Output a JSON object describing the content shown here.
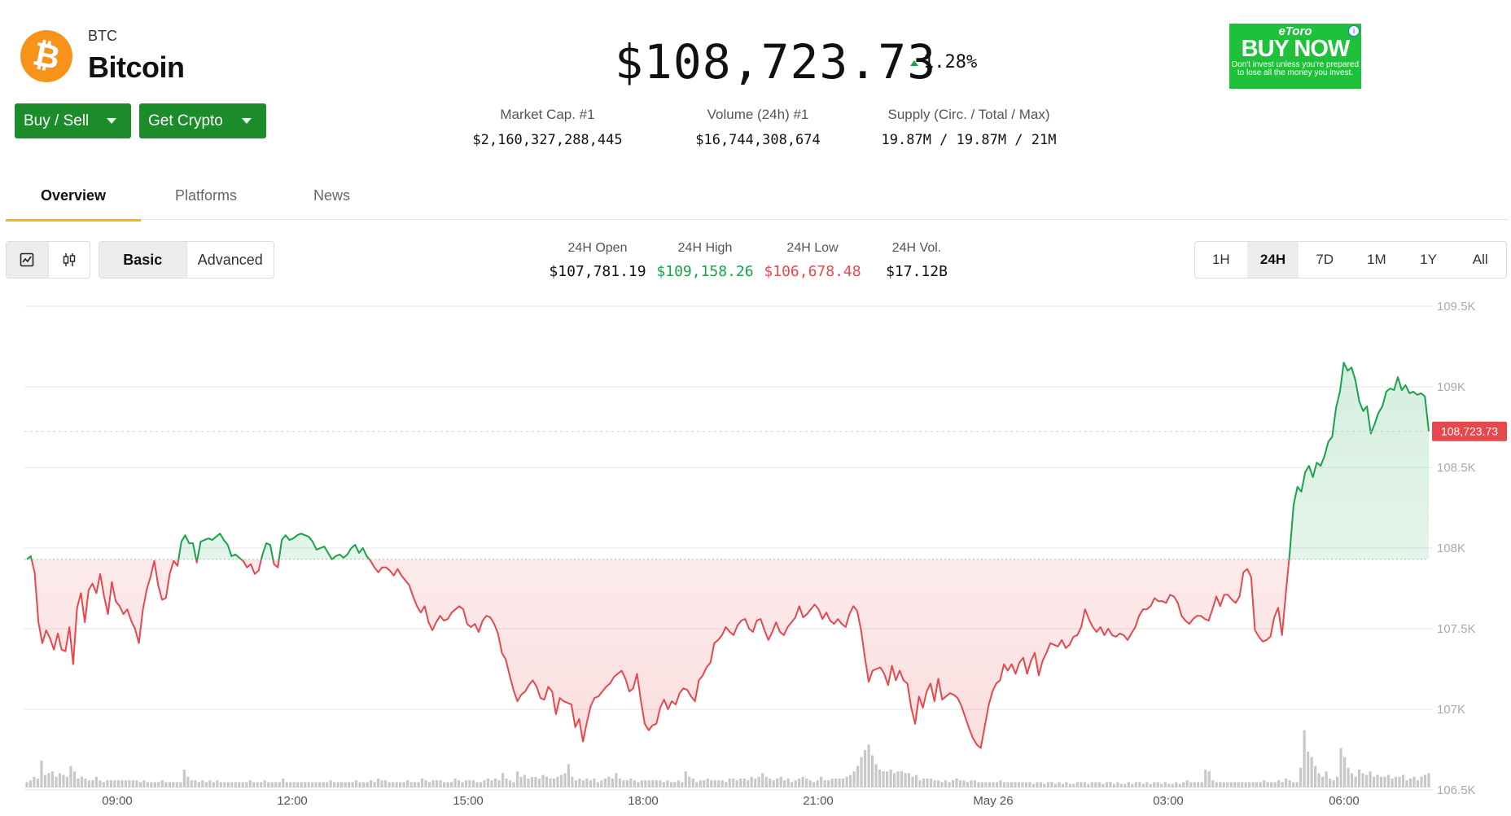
{
  "coin": {
    "symbol": "BTC",
    "name": "Bitcoin",
    "logo_glyph": "₿",
    "brand_color": "#f7931a"
  },
  "actions": {
    "buy_sell_label": "Buy / Sell",
    "get_crypto_label": "Get Crypto",
    "button_color": "#1c8c2a"
  },
  "price": {
    "value": "$108,723.73",
    "change": "1.28%",
    "change_direction": "up"
  },
  "stats": {
    "market_cap_label": "Market Cap. #1",
    "market_cap_value": "$2,160,327,288,445",
    "volume_label": "Volume (24h) #1",
    "volume_value": "$16,744,308,674",
    "supply_label": "Supply (Circ. / Total / Max)",
    "supply_value": "19.87M / 19.87M / 21M"
  },
  "ad": {
    "brand": "eToro",
    "cta": "BUY NOW",
    "disclaimer": "Don't invest unless you're prepared to lose all the money you invest.",
    "info_glyph": "i"
  },
  "tabs": [
    {
      "label": "Overview",
      "active": true
    },
    {
      "label": "Platforms",
      "active": false
    },
    {
      "label": "News",
      "active": false
    }
  ],
  "chart_controls": {
    "chart_type_icons": [
      "line-chart-icon",
      "candlestick-icon"
    ],
    "mode_basic": "Basic",
    "mode_advanced": "Advanced",
    "active_mode": "Basic"
  },
  "ohlc": {
    "open_label": "24H Open",
    "open_value": "$107,781.19",
    "high_label": "24H High",
    "high_value": "$109,158.26",
    "low_label": "24H Low",
    "low_value": "$106,678.48",
    "vol_label": "24H Vol.",
    "vol_value": "$17.12B"
  },
  "timeframes": [
    "1H",
    "24H",
    "7D",
    "1M",
    "1Y",
    "All"
  ],
  "active_timeframe": "24H",
  "colors": {
    "up": "#16a34a",
    "down": "#e5484d",
    "grid": "#e6e6e6",
    "volume": "#c8c8c8",
    "tab_accent": "#f0b90b"
  },
  "chart_data": {
    "type": "area",
    "title": "",
    "x_tick_labels": [
      "09:00",
      "12:00",
      "15:00",
      "18:00",
      "21:00",
      "May 26",
      "03:00",
      "06:00"
    ],
    "y_tick_labels": [
      "109.5K",
      "109K",
      "108.5K",
      "108K",
      "107.5K",
      "107K",
      "106.5K"
    ],
    "ylim": [
      106500,
      109500
    ],
    "baseline": 107930,
    "current_price_label": "108,723.73",
    "current_price": 108723.73,
    "grid": true,
    "series": [
      {
        "values": [
          107930,
          107950,
          107850,
          107540,
          107410,
          107490,
          107440,
          107370,
          107470,
          107370,
          107360,
          107510,
          107280,
          107630,
          107720,
          107540,
          107740,
          107780,
          107720,
          107840,
          107700,
          107590,
          107790,
          107670,
          107640,
          107590,
          107620,
          107550,
          107500,
          107410,
          107610,
          107740,
          107820,
          107920,
          107770,
          107680,
          107690,
          107840,
          107920,
          107890,
          108040,
          108080,
          108030,
          108030,
          107910,
          108040,
          108050,
          108060,
          108050,
          108070,
          108090,
          108050,
          108020,
          107950,
          107960,
          107940,
          107920,
          107880,
          107900,
          107840,
          107860,
          107960,
          108030,
          108020,
          107900,
          107880,
          108050,
          108080,
          108050,
          108060,
          108080,
          108090,
          108080,
          108070,
          108040,
          107990,
          108000,
          108010,
          107970,
          107930,
          107950,
          107960,
          107940,
          107960,
          108000,
          108020,
          107970,
          108000,
          107950,
          107920,
          107880,
          107850,
          107880,
          107880,
          107860,
          107830,
          107870,
          107830,
          107800,
          107770,
          107700,
          107640,
          107600,
          107640,
          107540,
          107490,
          107540,
          107580,
          107550,
          107560,
          107600,
          107620,
          107640,
          107620,
          107530,
          107510,
          107530,
          107480,
          107550,
          107580,
          107570,
          107530,
          107470,
          107350,
          107310,
          107210,
          107120,
          107050,
          107090,
          107110,
          107150,
          107180,
          107140,
          107070,
          107060,
          107140,
          107110,
          106970,
          107070,
          107050,
          107040,
          107030,
          106890,
          106940,
          106800,
          106920,
          107020,
          107070,
          107080,
          107110,
          107140,
          107160,
          107200,
          107220,
          107240,
          107190,
          107110,
          107130,
          107220,
          107050,
          106910,
          106870,
          106900,
          106910,
          107010,
          107060,
          107000,
          107050,
          107030,
          107100,
          107130,
          107120,
          107080,
          107050,
          107180,
          107210,
          107260,
          107290,
          107410,
          107430,
          107460,
          107510,
          107480,
          107460,
          107520,
          107550,
          107560,
          107500,
          107480,
          107550,
          107560,
          107490,
          107430,
          107480,
          107540,
          107480,
          107460,
          107510,
          107540,
          107570,
          107640,
          107570,
          107590,
          107620,
          107650,
          107620,
          107560,
          107600,
          107550,
          107530,
          107560,
          107530,
          107510,
          107590,
          107640,
          107610,
          107490,
          107320,
          107170,
          107240,
          107250,
          107260,
          107220,
          107150,
          107270,
          107180,
          107240,
          107180,
          107160,
          107010,
          106910,
          107080,
          107010,
          107110,
          107160,
          107050,
          107190,
          107060,
          107080,
          107100,
          107090,
          107070,
          107020,
          106950,
          106880,
          106820,
          106780,
          106760,
          106890,
          107020,
          107110,
          107160,
          107180,
          107280,
          107240,
          107280,
          107220,
          107290,
          107320,
          107220,
          107300,
          107350,
          107210,
          107300,
          107350,
          107410,
          107400,
          107390,
          107430,
          107380,
          107400,
          107450,
          107460,
          107510,
          107620,
          107560,
          107510,
          107480,
          107510,
          107460,
          107500,
          107460,
          107450,
          107470,
          107460,
          107430,
          107470,
          107510,
          107580,
          107620,
          107620,
          107640,
          107690,
          107670,
          107670,
          107660,
          107710,
          107700,
          107660,
          107580,
          107550,
          107530,
          107560,
          107580,
          107580,
          107560,
          107550,
          107620,
          107700,
          107640,
          107710,
          107710,
          107680,
          107660,
          107700,
          107850,
          107870,
          107820,
          107490,
          107450,
          107420,
          107430,
          107450,
          107570,
          107630,
          107460,
          107720,
          107970,
          108270,
          108380,
          108350,
          108470,
          108510,
          108440,
          108530,
          108510,
          108570,
          108660,
          108690,
          108870,
          108970,
          109150,
          109100,
          109120,
          109040,
          108910,
          108850,
          108880,
          108710,
          108770,
          108840,
          108880,
          108970,
          108990,
          108980,
          109060,
          108980,
          109010,
          108960,
          108970,
          108950,
          108960,
          108940,
          108723.73
        ]
      }
    ],
    "volume_values": [
      3,
      4,
      6,
      5,
      15,
      7,
      8,
      9,
      6,
      8,
      7,
      6,
      12,
      9,
      5,
      6,
      5,
      4,
      4,
      6,
      4,
      3,
      4,
      4,
      4,
      4,
      4,
      4,
      4,
      4,
      4,
      3,
      4,
      3,
      3,
      3,
      3,
      4,
      3,
      3,
      3,
      3,
      3,
      10,
      6,
      4,
      4,
      3,
      4,
      3,
      4,
      3,
      4,
      3,
      3,
      3,
      3,
      3,
      3,
      3,
      3,
      4,
      3,
      3,
      3,
      4,
      3,
      3,
      3,
      3,
      5,
      3,
      3,
      3,
      3,
      3,
      3,
      3,
      3,
      3,
      3,
      3,
      3,
      4,
      3,
      3,
      3,
      3,
      3,
      3,
      4,
      3,
      3,
      3,
      4,
      3,
      5,
      4,
      4,
      3,
      3,
      3,
      3,
      3,
      4,
      3,
      3,
      3,
      5,
      4,
      3,
      4,
      4,
      4,
      3,
      3,
      3,
      5,
      4,
      3,
      4,
      4,
      4,
      3,
      3,
      4,
      5,
      4,
      5,
      4,
      8,
      5,
      4,
      3,
      9,
      6,
      7,
      5,
      6,
      6,
      5,
      7,
      6,
      5,
      5,
      6,
      7,
      8,
      13,
      6,
      4,
      5,
      4,
      5,
      4,
      5,
      3,
      4,
      5,
      6,
      5,
      8,
      5,
      4,
      4,
      5,
      4,
      3,
      4,
      4,
      4,
      4,
      4,
      4,
      3,
      4,
      3,
      3,
      4,
      3,
      9,
      6,
      5,
      3,
      4,
      4,
      5,
      4,
      4,
      4,
      4,
      3,
      5,
      5,
      4,
      5,
      5,
      4,
      6,
      5,
      6,
      8,
      6,
      5,
      4,
      5,
      6,
      4,
      5,
      3,
      4,
      5,
      6,
      5,
      4,
      3,
      4,
      6,
      4,
      4,
      5,
      5,
      5,
      5,
      6,
      7,
      9,
      12,
      17,
      21,
      24,
      18,
      13,
      10,
      9,
      9,
      10,
      8,
      9,
      9,
      8,
      8,
      6,
      7,
      4,
      5,
      5,
      5,
      4,
      4,
      3,
      4,
      3,
      4,
      5,
      4,
      4,
      3,
      4,
      4,
      3,
      3,
      3,
      3,
      3,
      3,
      4,
      3,
      3,
      3,
      3,
      3,
      3,
      3,
      3,
      2,
      3,
      3,
      2,
      3,
      3,
      2,
      3,
      2,
      3,
      2,
      2,
      3,
      3,
      3,
      2,
      3,
      3,
      3,
      2,
      3,
      3,
      2,
      3,
      2,
      2,
      3,
      2,
      3,
      3,
      2,
      3,
      2,
      3,
      3,
      2,
      3,
      2,
      2,
      3,
      2,
      3,
      4,
      3,
      3,
      3,
      3,
      10,
      9,
      4,
      3,
      3,
      3,
      3,
      3,
      3,
      3,
      3,
      3,
      3,
      3,
      3,
      3,
      4,
      3,
      3,
      3,
      4,
      3,
      5,
      4,
      3,
      3,
      11,
      32,
      20,
      17,
      12,
      8,
      6,
      9,
      5,
      4,
      6,
      22,
      17,
      11,
      8,
      6,
      10,
      8,
      7,
      9,
      6,
      7,
      6,
      6,
      7,
      5,
      6,
      6,
      7,
      4,
      5,
      6,
      4,
      6,
      7,
      8
    ]
  }
}
